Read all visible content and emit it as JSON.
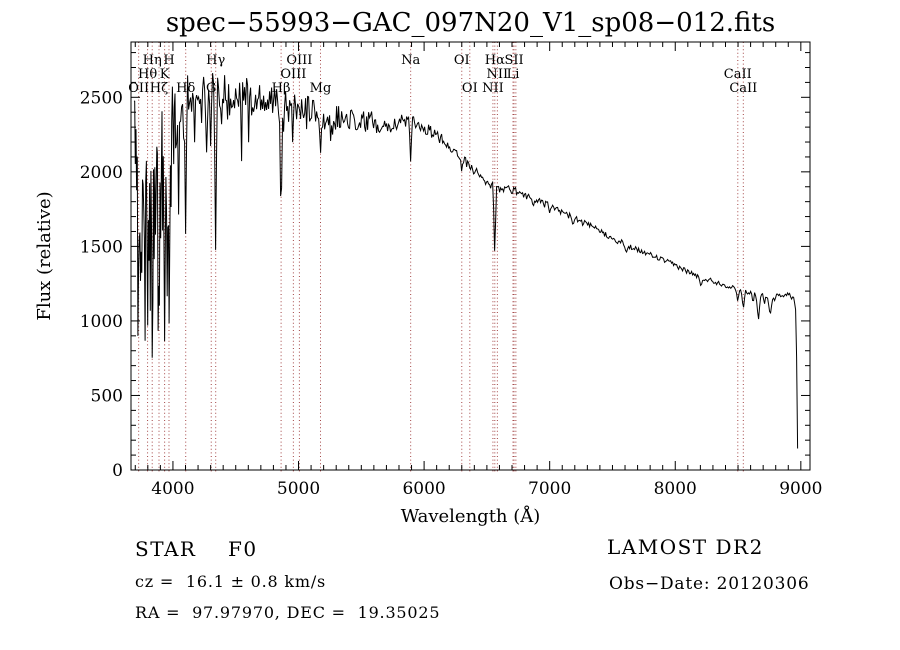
{
  "title": "spec−55993−GAC_097N20_V1_sp08−012.fits",
  "footer": {
    "class_label": "STAR",
    "subclass": "F0",
    "cz_line": "cz =  16.1 ± 0.8 km/s",
    "radec_line": "RA =  97.97970, DEC =  19.35025",
    "survey": "LAMOST DR2",
    "obs_date": "Obs−Date: 20120306"
  },
  "chart_data": {
    "type": "line",
    "title": "spec−55993−GAC_097N20_V1_sp08−012.fits",
    "xlabel": "Wavelength (Å)",
    "ylabel": "Flux (relative)",
    "xlim": [
      3666,
      9073
    ],
    "ylim": [
      0,
      2871
    ],
    "xticks": [
      4000,
      5000,
      6000,
      7000,
      8000,
      9000
    ],
    "yticks": [
      0,
      500,
      1000,
      1500,
      2000,
      2500
    ],
    "minor_step_x": 100,
    "minor_step_y": 100,
    "grid": false,
    "line_color": "#000000",
    "marker_color": "#a34545",
    "spectral_lines": [
      {
        "wl": 3727,
        "label": "OII",
        "row": 3
      },
      {
        "wl": 3798,
        "label": "Hθ",
        "row": 2
      },
      {
        "wl": 3835,
        "label": "Hη",
        "row": 1
      },
      {
        "wl": 3889,
        "label": "Hζ",
        "row": 3
      },
      {
        "wl": 3933.7,
        "label": "K",
        "row": 2
      },
      {
        "wl": 3968.5,
        "label": "H",
        "row": 1
      },
      {
        "wl": 4101.7,
        "label": "Hδ",
        "row": 3
      },
      {
        "wl": 4305,
        "label": "G",
        "row": 3
      },
      {
        "wl": 4340.5,
        "label": "Hγ",
        "row": 1
      },
      {
        "wl": 4861.3,
        "label": "Hβ",
        "row": 3
      },
      {
        "wl": 4959,
        "label": "OIII",
        "row": 2
      },
      {
        "wl": 5007,
        "label": "OIII",
        "row": 1
      },
      {
        "wl": 5175,
        "label": "Mg",
        "row": 3
      },
      {
        "wl": 5893,
        "label": "Na",
        "row": 1
      },
      {
        "wl": 6300,
        "label": "OI",
        "row": 1
      },
      {
        "wl": 6364,
        "label": "OI",
        "row": 3
      },
      {
        "wl": 6548,
        "label": "NII",
        "row": 3
      },
      {
        "wl": 6563,
        "label": "Hα",
        "row": 1
      },
      {
        "wl": 6583.5,
        "label": "NII",
        "row": 2
      },
      {
        "wl": 6708,
        "label": "Li",
        "row": 2
      },
      {
        "wl": 6716.4,
        "label": "SII",
        "row": 1
      },
      {
        "wl": 6730.8,
        "label": "",
        "row": 0
      },
      {
        "wl": 8498,
        "label": "CaII",
        "row": 2
      },
      {
        "wl": 8542,
        "label": "CaII",
        "row": 3
      }
    ],
    "continuum": [
      [
        3690,
        2480
      ],
      [
        3740,
        2500
      ],
      [
        3800,
        2520
      ],
      [
        3870,
        2540
      ],
      [
        3940,
        2555
      ],
      [
        4010,
        2555
      ],
      [
        4080,
        2550
      ],
      [
        4150,
        2555
      ],
      [
        4220,
        2560
      ],
      [
        4300,
        2560
      ],
      [
        4380,
        2555
      ],
      [
        4460,
        2545
      ],
      [
        4540,
        2530
      ],
      [
        4620,
        2515
      ],
      [
        4700,
        2500
      ],
      [
        4780,
        2485
      ],
      [
        4860,
        2470
      ],
      [
        4940,
        2450
      ],
      [
        5020,
        2430
      ],
      [
        5100,
        2405
      ],
      [
        5180,
        2380
      ],
      [
        5260,
        2365
      ],
      [
        5340,
        2355
      ],
      [
        5420,
        2350
      ],
      [
        5500,
        2345
      ],
      [
        5580,
        2335
      ],
      [
        5660,
        2330
      ],
      [
        5740,
        2330
      ],
      [
        5820,
        2340
      ],
      [
        5880,
        2350
      ],
      [
        5930,
        2330
      ],
      [
        6000,
        2295
      ],
      [
        6080,
        2255
      ],
      [
        6160,
        2205
      ],
      [
        6240,
        2140
      ],
      [
        6320,
        2075
      ],
      [
        6400,
        2010
      ],
      [
        6480,
        1950
      ],
      [
        6545,
        1905
      ],
      [
        6610,
        1880
      ],
      [
        6680,
        1885
      ],
      [
        6750,
        1865
      ],
      [
        6820,
        1840
      ],
      [
        6890,
        1815
      ],
      [
        6960,
        1785
      ],
      [
        7030,
        1755
      ],
      [
        7100,
        1730
      ],
      [
        7170,
        1700
      ],
      [
        7240,
        1670
      ],
      [
        7310,
        1640
      ],
      [
        7380,
        1610
      ],
      [
        7450,
        1580
      ],
      [
        7520,
        1550
      ],
      [
        7590,
        1515
      ],
      [
        7660,
        1490
      ],
      [
        7730,
        1465
      ],
      [
        7800,
        1445
      ],
      [
        7870,
        1420
      ],
      [
        7940,
        1395
      ],
      [
        8010,
        1370
      ],
      [
        8080,
        1340
      ],
      [
        8150,
        1310
      ],
      [
        8220,
        1290
      ],
      [
        8290,
        1270
      ],
      [
        8360,
        1250
      ],
      [
        8430,
        1230
      ],
      [
        8500,
        1212
      ],
      [
        8570,
        1195
      ],
      [
        8640,
        1180
      ],
      [
        8710,
        1170
      ],
      [
        8780,
        1165
      ],
      [
        8850,
        1172
      ],
      [
        8905,
        1185
      ],
      [
        8940,
        1160
      ],
      [
        8958,
        1090
      ],
      [
        8966,
        800
      ],
      [
        8972,
        300
      ],
      [
        8976,
        35
      ]
    ],
    "absorption": [
      [
        3712,
        1700,
        1.2
      ],
      [
        3722,
        1400,
        1.2
      ],
      [
        3727,
        1200,
        1.5
      ],
      [
        3734,
        1050,
        1.2
      ],
      [
        3742,
        1650,
        1
      ],
      [
        3750,
        880,
        1.5
      ],
      [
        3760,
        1500,
        1
      ],
      [
        3771,
        1250,
        1.5
      ],
      [
        3784,
        1800,
        1
      ],
      [
        3798,
        790,
        1.8
      ],
      [
        3812,
        1550,
        1
      ],
      [
        3820,
        1300,
        1.2
      ],
      [
        3835,
        720,
        1.8
      ],
      [
        3848,
        1600,
        1
      ],
      [
        3860,
        1400,
        1.2
      ],
      [
        3874,
        1850,
        1
      ],
      [
        3889,
        790,
        1.8
      ],
      [
        3905,
        1550,
        1
      ],
      [
        3920,
        1800,
        1
      ],
      [
        3934,
        680,
        2
      ],
      [
        3950,
        1500,
        1
      ],
      [
        3970,
        860,
        2
      ],
      [
        3985,
        1750,
        1
      ],
      [
        4005,
        1950,
        1
      ],
      [
        4026,
        1900,
        1.2
      ],
      [
        4045,
        1680,
        1.5
      ],
      [
        4064,
        2150,
        1
      ],
      [
        4083,
        2050,
        1
      ],
      [
        4101,
        1560,
        1.8
      ],
      [
        4128,
        2280,
        1
      ],
      [
        4150,
        2350,
        1
      ],
      [
        4172,
        2150,
        1.2
      ],
      [
        4200,
        2400,
        1
      ],
      [
        4227,
        2260,
        1.2
      ],
      [
        4260,
        2350,
        1
      ],
      [
        4300,
        2170,
        1.5
      ],
      [
        4340,
        1430,
        1.8
      ],
      [
        4385,
        2180,
        1.2
      ],
      [
        4435,
        2330,
        1
      ],
      [
        4471,
        2320,
        1.2
      ],
      [
        4520,
        2350,
        1
      ],
      [
        4668,
        2380,
        1
      ],
      [
        4713,
        2400,
        1
      ],
      [
        4861,
        1490,
        1.8
      ],
      [
        4920,
        2300,
        1
      ],
      [
        4957,
        2330,
        1
      ],
      [
        5015,
        2320,
        1
      ],
      [
        5100,
        2290,
        1
      ],
      [
        5175,
        2090,
        1.8
      ],
      [
        5210,
        2230,
        1
      ],
      [
        5270,
        2220,
        1.5
      ],
      [
        5330,
        2250,
        1
      ],
      [
        5405,
        2260,
        1
      ],
      [
        5460,
        2280,
        1
      ],
      [
        5530,
        2250,
        1
      ],
      [
        5711,
        2250,
        1
      ],
      [
        5780,
        2270,
        1
      ],
      [
        5893,
        2050,
        1.8
      ],
      [
        6024,
        2210,
        1
      ],
      [
        6122,
        2180,
        1
      ],
      [
        6300,
        1985,
        1.5
      ],
      [
        6366,
        2020,
        1.2
      ],
      [
        6495,
        1930,
        1
      ],
      [
        6563,
        1375,
        1.8
      ],
      [
        6869,
        1755,
        2
      ],
      [
        7000,
        1720,
        1.5
      ],
      [
        7186,
        1630,
        2
      ],
      [
        7610,
        1450,
        2.5
      ],
      [
        7660,
        1480,
        1.5
      ],
      [
        8205,
        1220,
        2.5
      ],
      [
        8230,
        1260,
        1.5
      ],
      [
        8498,
        1120,
        2
      ],
      [
        8542,
        1060,
        2.2
      ],
      [
        8620,
        1100,
        1.5
      ],
      [
        8662,
        980,
        2.5
      ],
      [
        8710,
        1100,
        1.5
      ],
      [
        8756,
        1020,
        3
      ],
      [
        8790,
        1130,
        1.5
      ],
      [
        8862,
        1160,
        1.5
      ],
      [
        8925,
        1140,
        1.5
      ]
    ],
    "noise_bands": [
      [
        3666,
        4005,
        215
      ],
      [
        4005,
        4320,
        150
      ],
      [
        4320,
        4700,
        115
      ],
      [
        4700,
        5330,
        92
      ],
      [
        5330,
        5750,
        72
      ],
      [
        5750,
        5910,
        55
      ],
      [
        5910,
        6150,
        40
      ],
      [
        6150,
        6600,
        30
      ],
      [
        6600,
        7050,
        25
      ],
      [
        7050,
        7620,
        21
      ],
      [
        7620,
        8350,
        17
      ],
      [
        8350,
        8920,
        14
      ],
      [
        8920,
        9080,
        12
      ]
    ],
    "spike_zones": [
      [
        3666,
        4008,
        0.3,
        850,
        1500
      ],
      [
        4008,
        4650,
        0.13,
        2050,
        420
      ],
      [
        4650,
        5350,
        0.07,
        2180,
        250
      ]
    ],
    "data_range": [
      3690,
      8976
    ]
  }
}
